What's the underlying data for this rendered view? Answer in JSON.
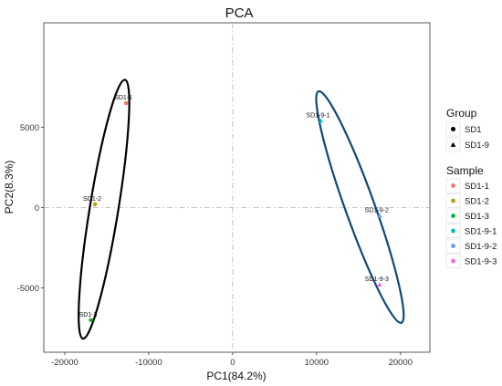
{
  "chart_data": {
    "type": "scatter",
    "title": "PCA",
    "xlabel": "PC1(84.2%)",
    "ylabel": "PC2(8.3%)",
    "xlim": [
      -22500,
      23500
    ],
    "ylim": [
      -9000,
      11500
    ],
    "xticks": [
      -20000,
      -10000,
      0,
      10000,
      20000
    ],
    "xtick_labels": [
      "-20000",
      "-10000",
      "0",
      "10000",
      "20000"
    ],
    "yticks": [
      -5000,
      0,
      5000
    ],
    "ytick_labels": [
      "-5000",
      "0",
      "5000"
    ],
    "reference_lines": {
      "x": 0,
      "y": 0,
      "style": "dash-dot"
    },
    "grid": false,
    "points": [
      {
        "label": "SD1-1",
        "group": "SD1",
        "x": -12700,
        "y": 6500,
        "color": "#F8766D"
      },
      {
        "label": "SD1-2",
        "group": "SD1",
        "x": -16400,
        "y": 200,
        "color": "#B79F00"
      },
      {
        "label": "SD1-3",
        "group": "SD1",
        "x": -16900,
        "y": -7000,
        "color": "#00BA38"
      },
      {
        "label": "SD1-9-1",
        "group": "SD1-9",
        "x": 10500,
        "y": 5400,
        "color": "#00BFC4"
      },
      {
        "label": "SD1-9-2",
        "group": "SD1-9",
        "x": 17500,
        "y": -500,
        "color": "#619CFF"
      },
      {
        "label": "SD1-9-3",
        "group": "SD1-9",
        "x": 17500,
        "y": -4800,
        "color": "#F564E3"
      }
    ],
    "ellipses": [
      {
        "group": "SD1",
        "color": "#000000",
        "center": [
          -15333,
          -100
        ],
        "semi_major": 8000,
        "semi_minor": 1700
      },
      {
        "group": "SD1-9",
        "color": "#0D4A7A",
        "center": [
          15167,
          33
        ],
        "semi_major": 7500,
        "semi_minor": 1750
      }
    ],
    "legend": {
      "placement": "right",
      "group": {
        "title": "Group",
        "items": [
          {
            "label": "SD1",
            "shape": "circle"
          },
          {
            "label": "SD1-9",
            "shape": "triangle"
          }
        ]
      },
      "sample": {
        "title": "Sample",
        "items": [
          {
            "label": "SD1-1",
            "color": "#F8766D"
          },
          {
            "label": "SD1-2",
            "color": "#B79F00"
          },
          {
            "label": "SD1-3",
            "color": "#00BA38"
          },
          {
            "label": "SD1-9-1",
            "color": "#00BFC4"
          },
          {
            "label": "SD1-9-2",
            "color": "#619CFF"
          },
          {
            "label": "SD1-9-3",
            "color": "#F564E3"
          }
        ]
      }
    }
  }
}
